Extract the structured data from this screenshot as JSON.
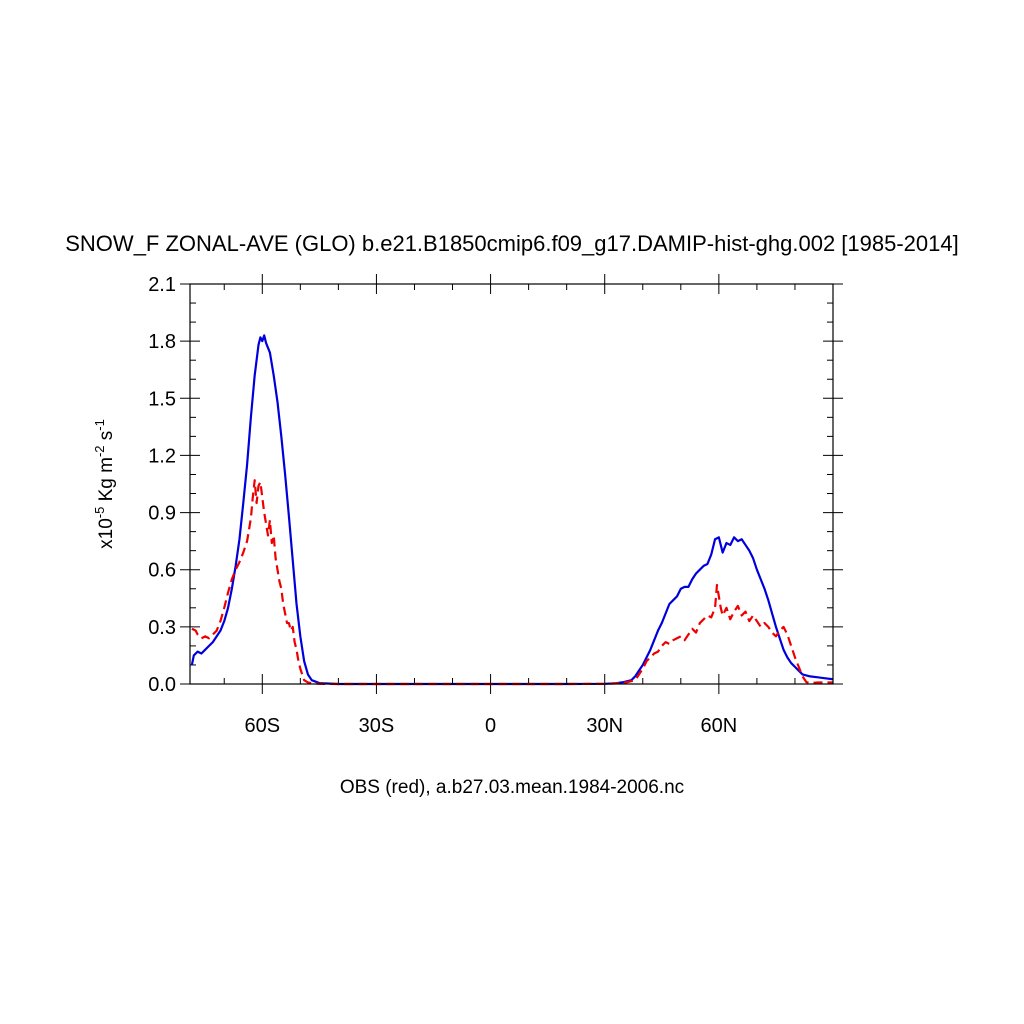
{
  "chart_data": {
    "type": "line",
    "title": "SNOW_F ZONAL-AVE (GLO) b.e21.B1850cmip6.f09_g17.DAMIP-hist-ghg.002 [1985-2014]",
    "ylabel": {
      "prefix": "x10",
      "exp": "-5",
      "kg": " Kg m",
      "m_exp": "-2",
      "s": " s",
      "s_exp": "-1"
    },
    "xlabel": "OBS (red), a.b27.03.mean.1984-2006.nc",
    "xlim": [
      -79,
      90
    ],
    "ylim": [
      0,
      2.1
    ],
    "x_ticks": [
      {
        "value": -60,
        "label": "60S"
      },
      {
        "value": -30,
        "label": "30S"
      },
      {
        "value": 0,
        "label": "0"
      },
      {
        "value": 30,
        "label": "30N"
      },
      {
        "value": 60,
        "label": "60N"
      }
    ],
    "x_minor_ticks": [
      -70,
      -50,
      -40,
      -20,
      -10,
      10,
      20,
      40,
      50,
      70,
      80,
      90
    ],
    "y_ticks": [
      {
        "value": 0.0,
        "label": "0.0"
      },
      {
        "value": 0.3,
        "label": "0.3"
      },
      {
        "value": 0.6,
        "label": "0.6"
      },
      {
        "value": 0.9,
        "label": "0.9"
      },
      {
        "value": 1.2,
        "label": "1.2"
      },
      {
        "value": 1.5,
        "label": "1.5"
      },
      {
        "value": 1.8,
        "label": "1.8"
      },
      {
        "value": 2.1,
        "label": "2.1"
      }
    ],
    "y_minor_step": 0.1,
    "grid": false,
    "series": [
      {
        "color": "#0000dd",
        "dash": "solid",
        "x": [
          -78.5,
          -78,
          -77,
          -76,
          -75,
          -74,
          -73,
          -72,
          -71,
          -70,
          -69,
          -68,
          -67,
          -66,
          -65,
          -64,
          -63,
          -62,
          -61,
          -60.5,
          -60,
          -59.5,
          -59,
          -58,
          -57,
          -56,
          -55,
          -54,
          -53,
          -52,
          -51,
          -50,
          -49,
          -48,
          -47,
          -45,
          -40,
          -30,
          -20,
          -10,
          0,
          10,
          20,
          30,
          33,
          35,
          37,
          38,
          39,
          40,
          41,
          42,
          43,
          44,
          45,
          46,
          47,
          48,
          49,
          50,
          51,
          52,
          53,
          54,
          55,
          56,
          57,
          58,
          59,
          60,
          61,
          62,
          63,
          64,
          65,
          66,
          67,
          68,
          69,
          70,
          71,
          72,
          73,
          74,
          75,
          76,
          77,
          78,
          79,
          80,
          81,
          82,
          84,
          86,
          88,
          90
        ],
        "y": [
          0.1,
          0.15,
          0.17,
          0.16,
          0.18,
          0.2,
          0.22,
          0.25,
          0.28,
          0.33,
          0.4,
          0.5,
          0.62,
          0.76,
          0.95,
          1.15,
          1.4,
          1.62,
          1.78,
          1.82,
          1.8,
          1.83,
          1.79,
          1.74,
          1.62,
          1.48,
          1.3,
          1.1,
          0.88,
          0.65,
          0.42,
          0.25,
          0.12,
          0.05,
          0.02,
          0.005,
          0.0,
          0.0,
          0.0,
          0.0,
          0.0,
          0.0,
          0.0,
          0.001,
          0.004,
          0.01,
          0.02,
          0.04,
          0.07,
          0.1,
          0.14,
          0.18,
          0.23,
          0.28,
          0.32,
          0.37,
          0.42,
          0.44,
          0.46,
          0.5,
          0.51,
          0.51,
          0.55,
          0.58,
          0.6,
          0.62,
          0.63,
          0.68,
          0.76,
          0.77,
          0.69,
          0.74,
          0.73,
          0.77,
          0.75,
          0.76,
          0.73,
          0.7,
          0.66,
          0.6,
          0.55,
          0.5,
          0.44,
          0.37,
          0.3,
          0.24,
          0.18,
          0.14,
          0.11,
          0.09,
          0.07,
          0.05,
          0.04,
          0.035,
          0.03,
          0.025
        ]
      },
      {
        "color": "#ee0000",
        "dash": "dashed",
        "x": [
          -78.5,
          -77.5,
          -77,
          -76,
          -75,
          -74,
          -73,
          -72,
          -71,
          -70,
          -69,
          -68,
          -67,
          -66,
          -65,
          -64,
          -63,
          -62.5,
          -62,
          -61.5,
          -61,
          -60.5,
          -60,
          -59.5,
          -59,
          -58.5,
          -58,
          -57.5,
          -57,
          -56.5,
          -56,
          -55.5,
          -55,
          -54.5,
          -54,
          -53.5,
          -53,
          -52.5,
          -52,
          -51.5,
          -51,
          -50.5,
          -50,
          -49.5,
          -49,
          -48,
          -47,
          -45,
          -40,
          -30,
          -20,
          -10,
          0,
          10,
          20,
          30,
          34,
          36,
          38,
          39,
          40,
          41,
          42,
          43,
          44,
          45,
          46,
          47,
          48,
          49,
          50,
          51,
          52,
          53,
          54,
          55,
          56,
          57,
          58,
          59,
          59.5,
          60,
          60.5,
          61,
          62,
          63,
          64,
          65,
          66,
          67,
          68,
          69,
          70,
          71,
          72,
          73,
          74,
          75,
          76,
          77,
          78,
          79,
          80,
          81,
          82,
          83,
          84,
          86,
          88,
          90
        ],
        "y": [
          0.29,
          0.28,
          0.26,
          0.24,
          0.25,
          0.24,
          0.26,
          0.28,
          0.33,
          0.4,
          0.48,
          0.55,
          0.6,
          0.64,
          0.69,
          0.75,
          0.87,
          0.98,
          1.07,
          0.95,
          1.04,
          1.06,
          0.98,
          0.9,
          0.84,
          0.78,
          0.86,
          0.74,
          0.78,
          0.66,
          0.6,
          0.54,
          0.5,
          0.42,
          0.37,
          0.32,
          0.32,
          0.28,
          0.3,
          0.22,
          0.18,
          0.12,
          0.08,
          0.05,
          0.02,
          0.008,
          0.004,
          0.001,
          0.0,
          0.0,
          0.0,
          0.0,
          0.0,
          0.0,
          0.0,
          0.001,
          0.004,
          0.01,
          0.02,
          0.05,
          0.08,
          0.12,
          0.14,
          0.16,
          0.17,
          0.2,
          0.22,
          0.21,
          0.23,
          0.24,
          0.25,
          0.23,
          0.26,
          0.29,
          0.27,
          0.32,
          0.34,
          0.36,
          0.35,
          0.4,
          0.52,
          0.46,
          0.4,
          0.36,
          0.4,
          0.34,
          0.38,
          0.41,
          0.36,
          0.38,
          0.33,
          0.36,
          0.33,
          0.3,
          0.32,
          0.3,
          0.27,
          0.25,
          0.28,
          0.3,
          0.26,
          0.2,
          0.14,
          0.09,
          0.04,
          0.01,
          0.005,
          0.008,
          0.008,
          0.008
        ]
      }
    ]
  }
}
